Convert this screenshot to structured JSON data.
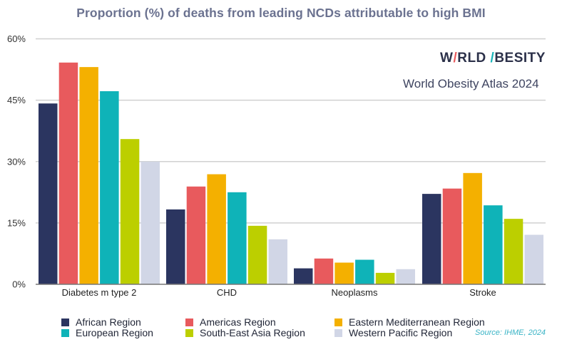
{
  "chart_data": {
    "type": "bar",
    "title": "Proportion (%) of deaths from leading NCDs attributable to high BMI",
    "xlabel": "",
    "ylabel": "",
    "ylim": [
      0,
      60
    ],
    "yticks": [
      0,
      15,
      30,
      45,
      60
    ],
    "ytick_labels": [
      "0%",
      "15%",
      "30%",
      "45%",
      "60%"
    ],
    "grid": true,
    "legend_position": "bottom",
    "categories": [
      "Diabetes m type 2",
      "CHD",
      "Neoplasms",
      "Stroke"
    ],
    "series": [
      {
        "name": "African Region",
        "color": "#2b3560",
        "values": [
          44.2,
          18.3,
          3.9,
          22.1
        ]
      },
      {
        "name": "Americas Region",
        "color": "#e85a5d",
        "values": [
          54.2,
          23.9,
          6.3,
          23.4
        ]
      },
      {
        "name": "Eastern Mediterranean Region",
        "color": "#f4b000",
        "values": [
          53.1,
          26.9,
          5.3,
          27.2
        ]
      },
      {
        "name": "European Region",
        "color": "#0fb3b8",
        "values": [
          47.2,
          22.5,
          6.0,
          19.3
        ]
      },
      {
        "name": "South-East Asia Region",
        "color": "#bccf00",
        "values": [
          35.5,
          14.3,
          2.8,
          16.0
        ]
      },
      {
        "name": "Western Pacific Region",
        "color": "#d1d6e6",
        "values": [
          30.0,
          11.0,
          3.7,
          12.1
        ]
      }
    ]
  },
  "branding": {
    "logo_parts": [
      "W",
      "/",
      "RLD ",
      "/",
      "BESITY"
    ],
    "subtitle": "World Obesity Atlas 2024"
  },
  "source": "Source: IHME, 2024"
}
